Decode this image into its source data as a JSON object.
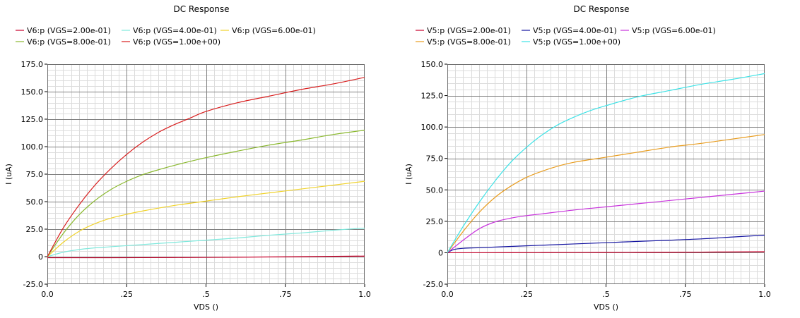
{
  "chart_data": [
    {
      "type": "line",
      "title": "DC Response",
      "xlabel": "VDS ()",
      "ylabel": "I (uA)",
      "xlim": [
        0.0,
        1.0
      ],
      "ylim": [
        -25.0,
        175.0
      ],
      "x_ticks": [
        0.0,
        0.25,
        0.5,
        0.75,
        1.0
      ],
      "x_tick_labels": [
        "0.0",
        ".25",
        ".5",
        ".75",
        "1.0"
      ],
      "y_ticks": [
        -25,
        0,
        25,
        50,
        75,
        100,
        125,
        150,
        175
      ],
      "y_tick_labels": [
        "-25.0",
        "0",
        "25.0",
        "50.0",
        "75.0",
        "100.0",
        "125.0",
        "150.0",
        "175.0"
      ],
      "grid": true,
      "legend_position": "top",
      "series": [
        {
          "name": "V6:p (VGS=2.00e-01)",
          "color": "#c8002a",
          "x": [
            0,
            0.2,
            0.4,
            0.6,
            0.8,
            1.0
          ],
          "y": [
            -1,
            -1,
            -0.8,
            -0.5,
            0,
            0.5
          ]
        },
        {
          "name": "V6:p (VGS=4.00e-01)",
          "color": "#7fe8dc",
          "x": [
            0,
            0.05,
            0.1,
            0.15,
            0.2,
            0.3,
            0.4,
            0.5,
            0.6,
            0.7,
            0.8,
            0.9,
            1.0
          ],
          "y": [
            0,
            4,
            6.5,
            8,
            9,
            11,
            13,
            15,
            17,
            19.5,
            21.5,
            24,
            26
          ]
        },
        {
          "name": "V6:p (VGS=6.00e-01)",
          "color": "#f0d22a",
          "x": [
            0,
            0.05,
            0.1,
            0.15,
            0.2,
            0.25,
            0.3,
            0.4,
            0.5,
            0.6,
            0.7,
            0.8,
            0.9,
            1.0
          ],
          "y": [
            0,
            13,
            23,
            30,
            35,
            38.5,
            41.5,
            46.5,
            50.5,
            54.5,
            58,
            61.5,
            65,
            68.5
          ]
        },
        {
          "name": "V6:p (VGS=8.00e-01)",
          "color": "#8ab82e",
          "x": [
            0,
            0.05,
            0.1,
            0.15,
            0.2,
            0.25,
            0.3,
            0.35,
            0.4,
            0.5,
            0.6,
            0.7,
            0.8,
            0.9,
            1.0
          ],
          "y": [
            0,
            21,
            38,
            51,
            61,
            68.5,
            74.5,
            79,
            83,
            90,
            96,
            101.5,
            106,
            111,
            115
          ]
        },
        {
          "name": "V6:p (VGS=1.00e+00)",
          "color": "#d81e1e",
          "x": [
            0,
            0.05,
            0.1,
            0.15,
            0.2,
            0.25,
            0.3,
            0.35,
            0.4,
            0.45,
            0.5,
            0.6,
            0.7,
            0.8,
            0.9,
            1.0
          ],
          "y": [
            0,
            26,
            47,
            65,
            80,
            93,
            104,
            113,
            120,
            126,
            132,
            140,
            146,
            152,
            157,
            163
          ]
        }
      ]
    },
    {
      "type": "line",
      "title": "DC Response",
      "xlabel": "VDS ()",
      "ylabel": "I (uA)",
      "xlim": [
        0.0,
        1.0
      ],
      "ylim": [
        -25.0,
        150.0
      ],
      "x_ticks": [
        0.0,
        0.25,
        0.5,
        0.75,
        1.0
      ],
      "x_tick_labels": [
        "0.0",
        ".25",
        ".5",
        ".75",
        "1.0"
      ],
      "y_ticks": [
        -25,
        0,
        25,
        50,
        75,
        100,
        125,
        150
      ],
      "y_tick_labels": [
        "-25.0",
        "0",
        "25.0",
        "50.0",
        "75.0",
        "100.0",
        "125.0",
        "150.0"
      ],
      "grid": true,
      "legend_position": "top",
      "series": [
        {
          "name": "V5:p (VGS=2.00e-01)",
          "color": "#c8002a",
          "x": [
            0,
            0.2,
            0.4,
            0.6,
            0.8,
            1.0
          ],
          "y": [
            0,
            0.1,
            0.2,
            0.3,
            0.5,
            0.8
          ]
        },
        {
          "name": "V5:p (VGS=4.00e-01)",
          "color": "#1414a0",
          "x": [
            0,
            0.02,
            0.05,
            0.1,
            0.2,
            0.3,
            0.4,
            0.5,
            0.6,
            0.7,
            0.8,
            0.9,
            1.0
          ],
          "y": [
            0,
            2.5,
            3.5,
            4,
            5,
            6,
            7,
            8,
            9,
            10,
            11,
            12.5,
            14
          ]
        },
        {
          "name": "V5:p (VGS=6.00e-01)",
          "color": "#c832dc",
          "x": [
            0,
            0.05,
            0.1,
            0.15,
            0.2,
            0.25,
            0.3,
            0.4,
            0.5,
            0.6,
            0.7,
            0.8,
            0.9,
            1.0
          ],
          "y": [
            0,
            10,
            19,
            24.5,
            27.5,
            29.5,
            31,
            34,
            36.5,
            39,
            41.5,
            44,
            46.5,
            49
          ]
        },
        {
          "name": "V5:p (VGS=8.00e-01)",
          "color": "#e89c1e",
          "x": [
            0,
            0.05,
            0.1,
            0.15,
            0.2,
            0.25,
            0.3,
            0.35,
            0.4,
            0.5,
            0.6,
            0.7,
            0.8,
            0.9,
            1.0
          ],
          "y": [
            0,
            17,
            32,
            44,
            53,
            60,
            65,
            69,
            72,
            76,
            80,
            84,
            87,
            90.5,
            94
          ]
        },
        {
          "name": "V5:p (VGS=1.00e+00)",
          "color": "#3ce2e6",
          "x": [
            0,
            0.05,
            0.1,
            0.15,
            0.2,
            0.25,
            0.3,
            0.35,
            0.4,
            0.45,
            0.5,
            0.6,
            0.7,
            0.8,
            0.9,
            1.0
          ],
          "y": [
            0,
            21,
            40,
            57,
            72,
            84,
            94,
            102,
            108,
            113,
            117,
            124,
            129,
            134,
            138,
            142.5
          ]
        }
      ]
    }
  ]
}
